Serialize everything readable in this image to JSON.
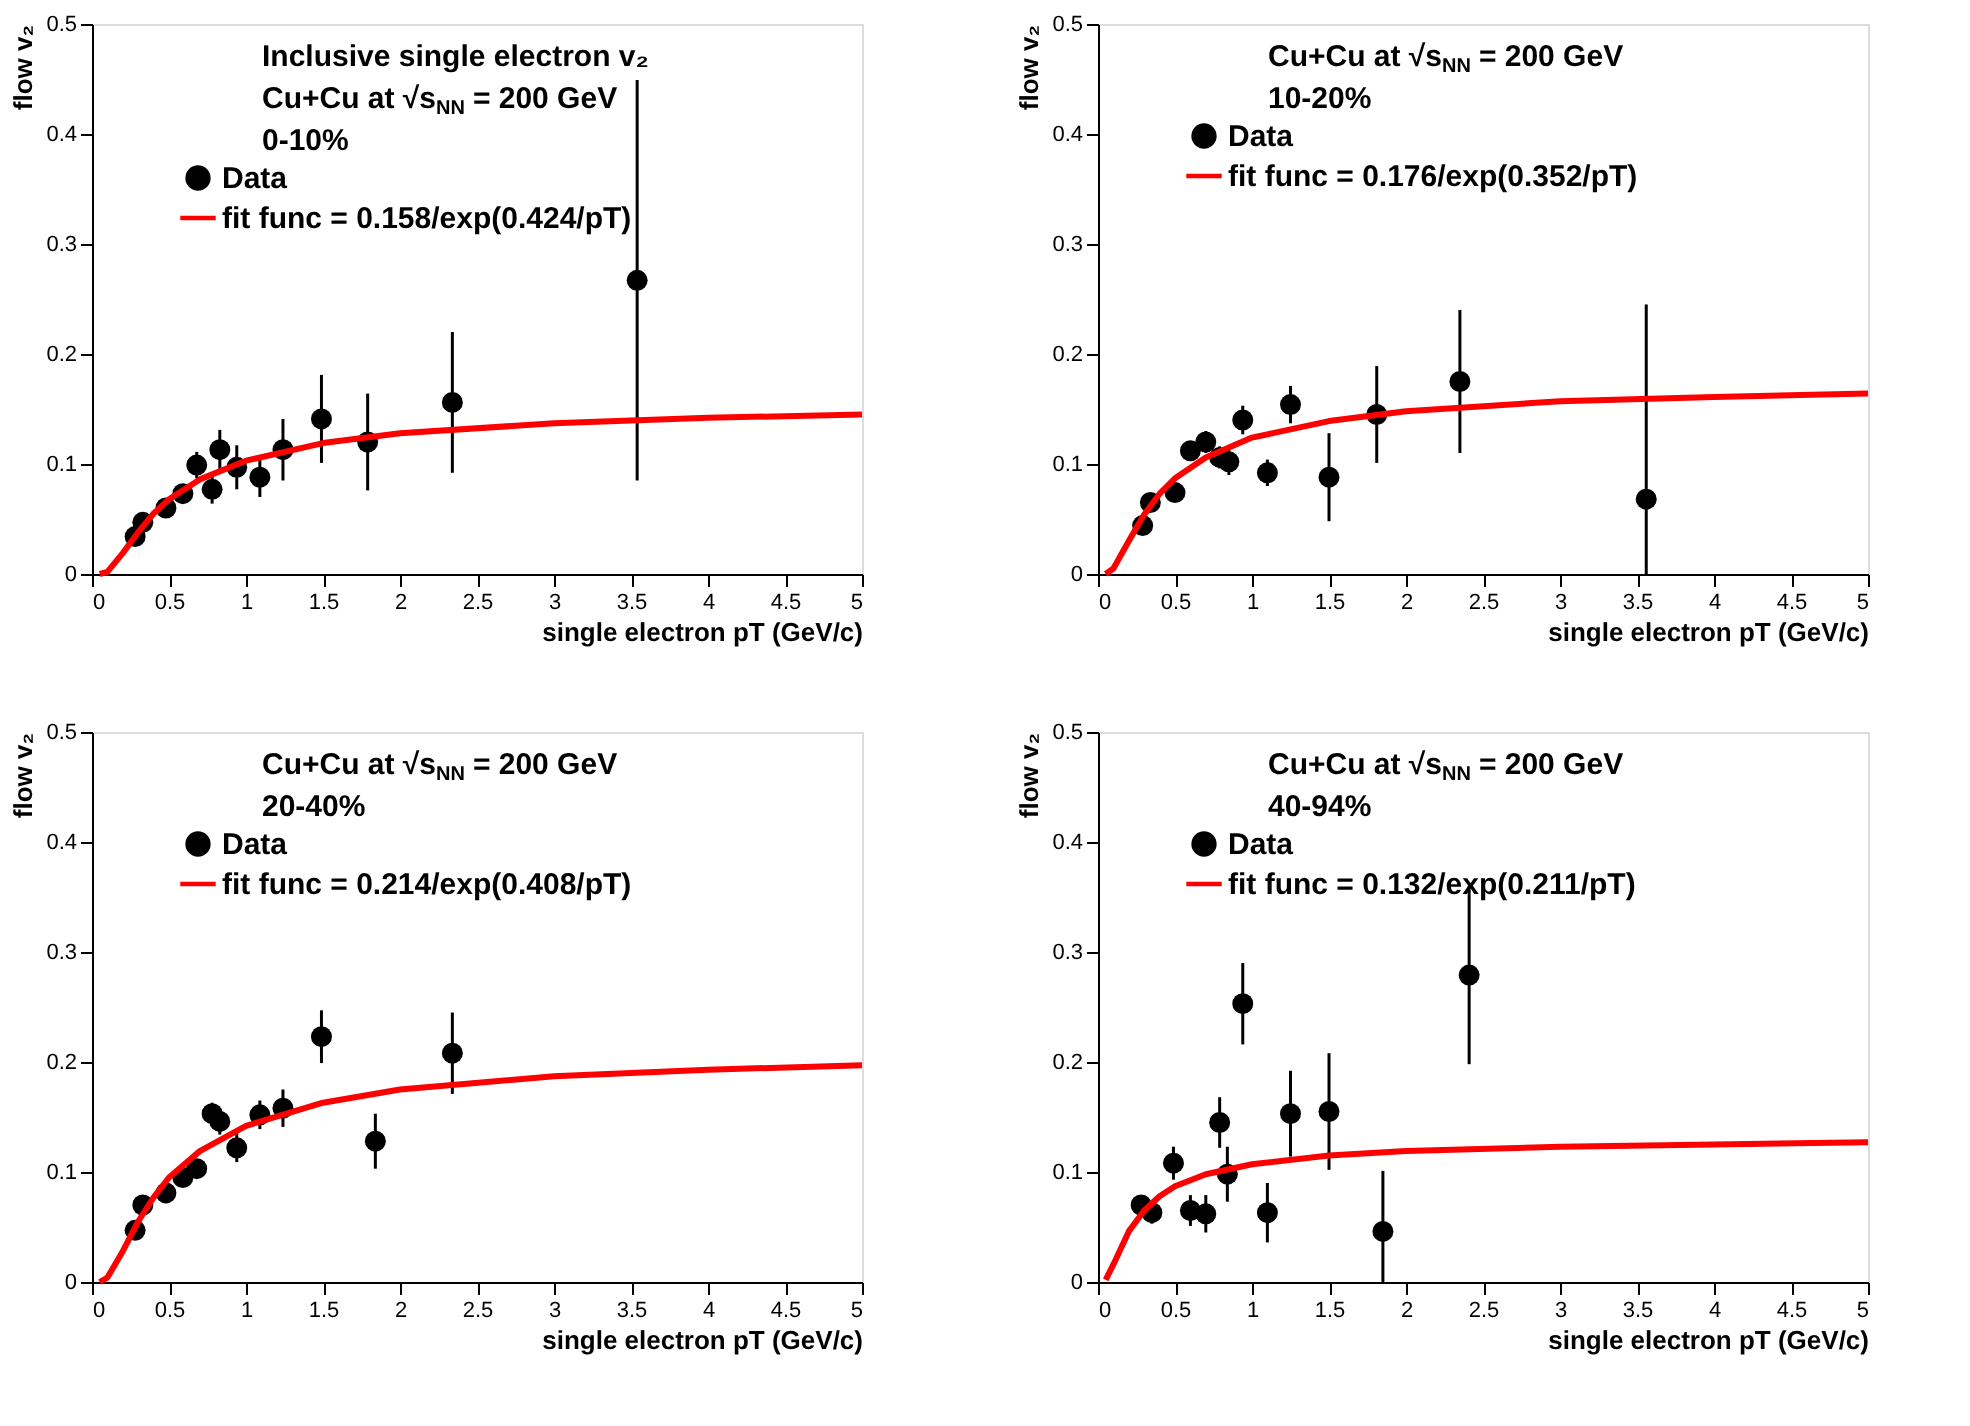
{
  "chart_data": [
    {
      "type": "scatter",
      "annotations": [
        "Inclusive single electron v₂",
        "Cu+Cu at √s$_{NN}$ = 200 GeV",
        "0-10%"
      ],
      "xlabel": "single electron pT (GeV/c)",
      "ylabel": "flow v₂",
      "xlim": [
        0,
        5
      ],
      "ylim": [
        0,
        0.5
      ],
      "xticks": [
        0,
        0.5,
        1,
        1.5,
        2,
        2.5,
        3,
        3.5,
        4,
        4.5,
        5
      ],
      "yticks": [
        0,
        0.1,
        0.2,
        0.3,
        0.4,
        0.5
      ],
      "legend": "top left",
      "grid": false,
      "series": [
        {
          "name": "Data",
          "type": "scatter",
          "marker": "circle",
          "color": "#000000",
          "x": [
            0.28,
            0.33,
            0.48,
            0.59,
            0.68,
            0.78,
            0.83,
            0.94,
            1.09,
            1.24,
            1.49,
            1.79,
            2.34,
            3.54
          ],
          "values": [
            0.034,
            0.047,
            0.06,
            0.073,
            0.099,
            0.077,
            0.113,
            0.097,
            0.088,
            0.113,
            0.141,
            0.12,
            0.156,
            0.267
          ],
          "errors": [
            0.006,
            0.006,
            0.005,
            0.006,
            0.012,
            0.013,
            0.018,
            0.02,
            0.018,
            0.028,
            0.04,
            0.044,
            0.064,
            0.182
          ]
        },
        {
          "name": "fit func = 0.158/exp(0.424/pT)",
          "type": "line",
          "marker": "none",
          "line_style": "solid",
          "color": "#ff0000",
          "x": [
            0.05,
            0.1,
            0.2,
            0.3,
            0.4,
            0.5,
            0.7,
            1,
            1.5,
            2,
            3,
            4,
            5
          ],
          "values": [
            0.0,
            0.002,
            0.019,
            0.038,
            0.055,
            0.068,
            0.086,
            0.103,
            0.119,
            0.128,
            0.137,
            0.142,
            0.145
          ]
        }
      ]
    },
    {
      "type": "scatter",
      "annotations": [
        "Cu+Cu at √s$_{NN}$ = 200 GeV",
        "10-20%"
      ],
      "xlabel": "single electron pT (GeV/c)",
      "ylabel": "flow v₂",
      "xlim": [
        0,
        5
      ],
      "ylim": [
        0,
        0.5
      ],
      "xticks": [
        0,
        0.5,
        1,
        1.5,
        2,
        2.5,
        3,
        3.5,
        4,
        4.5,
        5
      ],
      "yticks": [
        0,
        0.1,
        0.2,
        0.3,
        0.4,
        0.5
      ],
      "legend": "top left",
      "grid": false,
      "series": [
        {
          "name": "Data",
          "type": "scatter",
          "marker": "circle",
          "color": "#000000",
          "x": [
            0.29,
            0.34,
            0.5,
            0.6,
            0.7,
            0.79,
            0.85,
            0.94,
            1.1,
            1.25,
            1.5,
            1.81,
            2.35,
            3.56
          ],
          "values": [
            0.044,
            0.065,
            0.074,
            0.112,
            0.12,
            0.106,
            0.102,
            0.14,
            0.092,
            0.154,
            0.088,
            0.145,
            0.175,
            0.068
          ],
          "errors": [
            0.006,
            0.006,
            0.006,
            0.008,
            0.01,
            0.01,
            0.012,
            0.013,
            0.012,
            0.017,
            0.04,
            0.044,
            0.065,
            [
              0,
              0.245
            ]
          ]
        },
        {
          "name": "fit func = 0.176/exp(0.352/pT)",
          "type": "line",
          "marker": "none",
          "line_style": "solid",
          "color": "#ff0000",
          "x": [
            0.05,
            0.1,
            0.2,
            0.3,
            0.4,
            0.5,
            0.7,
            1,
            1.5,
            2,
            3,
            4,
            5
          ],
          "values": [
            0.0,
            0.005,
            0.03,
            0.054,
            0.073,
            0.087,
            0.106,
            0.124,
            0.139,
            0.148,
            0.157,
            0.161,
            0.164
          ]
        }
      ]
    },
    {
      "type": "scatter",
      "annotations": [
        "Cu+Cu at √s$_{NN}$ = 200 GeV",
        "20-40%"
      ],
      "xlabel": "single electron pT (GeV/c)",
      "ylabel": "flow v₂",
      "xlim": [
        0,
        5
      ],
      "ylim": [
        0,
        0.5
      ],
      "xticks": [
        0,
        0.5,
        1,
        1.5,
        2,
        2.5,
        3,
        3.5,
        4,
        4.5,
        5
      ],
      "yticks": [
        0,
        0.1,
        0.2,
        0.3,
        0.4,
        0.5
      ],
      "legend": "top left",
      "grid": false,
      "series": [
        {
          "name": "Data",
          "type": "scatter",
          "marker": "circle",
          "color": "#000000",
          "x": [
            0.28,
            0.33,
            0.48,
            0.59,
            0.68,
            0.78,
            0.83,
            0.94,
            1.09,
            1.24,
            1.49,
            1.84,
            2.34
          ],
          "values": [
            0.047,
            0.07,
            0.081,
            0.095,
            0.103,
            0.153,
            0.146,
            0.122,
            0.152,
            0.158,
            0.223,
            0.128,
            0.208
          ],
          "errors": [
            0.006,
            0.006,
            0.006,
            0.007,
            0.008,
            0.01,
            0.012,
            0.013,
            0.013,
            0.017,
            0.024,
            0.025,
            0.037
          ]
        },
        {
          "name": "fit func = 0.214/exp(0.408/pT)",
          "type": "line",
          "marker": "none",
          "line_style": "solid",
          "color": "#ff0000",
          "x": [
            0.05,
            0.1,
            0.2,
            0.3,
            0.4,
            0.5,
            0.7,
            1,
            1.5,
            2,
            3,
            4,
            5
          ],
          "values": [
            0.0,
            0.004,
            0.028,
            0.055,
            0.077,
            0.095,
            0.119,
            0.142,
            0.163,
            0.175,
            0.187,
            0.193,
            0.197
          ]
        }
      ]
    },
    {
      "type": "scatter",
      "annotations": [
        "Cu+Cu at √s$_{NN}$ = 200 GeV",
        "40-94%"
      ],
      "xlabel": "single electron pT (GeV/c)",
      "ylabel": "flow v₂",
      "xlim": [
        0,
        5
      ],
      "ylim": [
        0,
        0.5
      ],
      "xticks": [
        0,
        0.5,
        1,
        1.5,
        2,
        2.5,
        3,
        3.5,
        4,
        4.5,
        5
      ],
      "yticks": [
        0,
        0.1,
        0.2,
        0.3,
        0.4,
        0.5
      ],
      "legend": "top left",
      "grid": false,
      "series": [
        {
          "name": "Data",
          "type": "scatter",
          "marker": "circle",
          "color": "#000000",
          "x": [
            0.28,
            0.35,
            0.49,
            0.6,
            0.7,
            0.79,
            0.84,
            0.94,
            1.1,
            1.25,
            1.5,
            1.85,
            2.41
          ],
          "values": [
            0.07,
            0.063,
            0.108,
            0.065,
            0.062,
            0.145,
            0.098,
            0.253,
            0.063,
            0.153,
            0.155,
            0.046,
            0.279
          ],
          "errors": [
            0.009,
            0.01,
            0.015,
            0.014,
            0.017,
            0.023,
            0.025,
            0.037,
            0.027,
            0.039,
            0.053,
            [
              0,
              0.101
            ],
            0.081
          ]
        },
        {
          "name": "fit func = 0.132/exp(0.211/pT)",
          "type": "line",
          "marker": "none",
          "line_style": "solid",
          "color": "#ff0000",
          "x": [
            0.05,
            0.1,
            0.2,
            0.3,
            0.4,
            0.5,
            0.7,
            1,
            1.5,
            2,
            3,
            4,
            5
          ],
          "values": [
            0.002,
            0.016,
            0.046,
            0.065,
            0.078,
            0.087,
            0.098,
            0.107,
            0.115,
            0.119,
            0.123,
            0.125,
            0.127
          ]
        }
      ]
    }
  ]
}
